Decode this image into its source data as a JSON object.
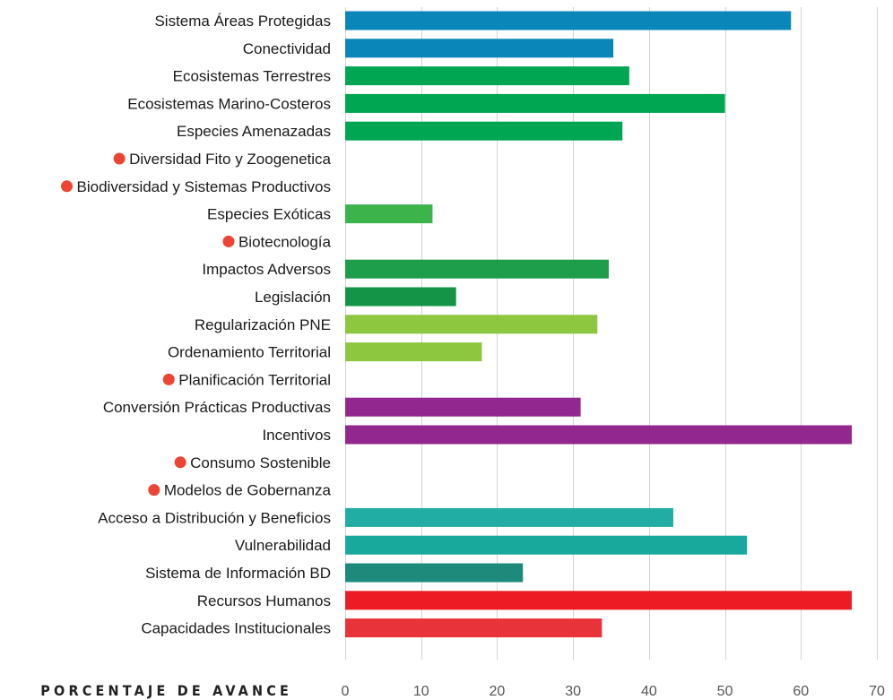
{
  "chart_data": {
    "type": "bar",
    "orientation": "horizontal",
    "xlabel": "PORCENTAJE DE AVANCE",
    "ylabel": "",
    "xlim": [
      0,
      70
    ],
    "xticks": [
      0,
      10,
      20,
      30,
      40,
      50,
      60,
      70
    ],
    "grid": true,
    "marker_color": "#ee4433",
    "categories": [
      {
        "label": "Sistema Áreas Protegidas",
        "value": 58.7,
        "color": "#0a86b8",
        "marked": false
      },
      {
        "label": "Conectividad",
        "value": 35.3,
        "color": "#0a86b8",
        "marked": false
      },
      {
        "label": "Ecosistemas Terrestres",
        "value": 37.4,
        "color": "#00a651",
        "marked": false
      },
      {
        "label": "Ecosistemas Marino-Costeros",
        "value": 50.0,
        "color": "#00a651",
        "marked": false
      },
      {
        "label": "Especies Amenazadas",
        "value": 36.5,
        "color": "#00a651",
        "marked": false
      },
      {
        "label": "Diversidad Fito y Zoogenetica",
        "value": 0,
        "color": "#00a651",
        "marked": true
      },
      {
        "label": "Biodiversidad y Sistemas Productivos",
        "value": 0,
        "color": "#00a651",
        "marked": true
      },
      {
        "label": "Especies Exóticas",
        "value": 11.5,
        "color": "#3cb44b",
        "marked": false
      },
      {
        "label": "Biotecnología",
        "value": 0,
        "color": "#3cb44b",
        "marked": true
      },
      {
        "label": "Impactos Adversos",
        "value": 34.7,
        "color": "#1e9e4a",
        "marked": false
      },
      {
        "label": "Legislación",
        "value": 14.6,
        "color": "#139447",
        "marked": false
      },
      {
        "label": "Regularización PNE",
        "value": 33.2,
        "color": "#8dc63f",
        "marked": false
      },
      {
        "label": "Ordenamiento Territorial",
        "value": 18.0,
        "color": "#8dc63f",
        "marked": false
      },
      {
        "label": "Planificación Territorial",
        "value": 0,
        "color": "#8dc63f",
        "marked": true
      },
      {
        "label": "Conversión Prácticas Productivas",
        "value": 31.0,
        "color": "#92278f",
        "marked": false
      },
      {
        "label": "Incentivos",
        "value": 66.7,
        "color": "#92278f",
        "marked": false
      },
      {
        "label": "Consumo Sostenible",
        "value": 0,
        "color": "#92278f",
        "marked": true
      },
      {
        "label": "Modelos de Gobernanza",
        "value": 0,
        "color": "#92278f",
        "marked": true
      },
      {
        "label": "Acceso a Distribución y Beneficios",
        "value": 43.2,
        "color": "#21ada4",
        "marked": false
      },
      {
        "label": "Vulnerabilidad",
        "value": 52.9,
        "color": "#18a89c",
        "marked": false
      },
      {
        "label": "Sistema de Información BD",
        "value": 23.4,
        "color": "#1d8a7c",
        "marked": false
      },
      {
        "label": "Recursos Humanos",
        "value": 66.7,
        "color": "#ed1c24",
        "marked": false
      },
      {
        "label": "Capacidades Institucionales",
        "value": 33.8,
        "color": "#e8333a",
        "marked": false
      }
    ]
  }
}
